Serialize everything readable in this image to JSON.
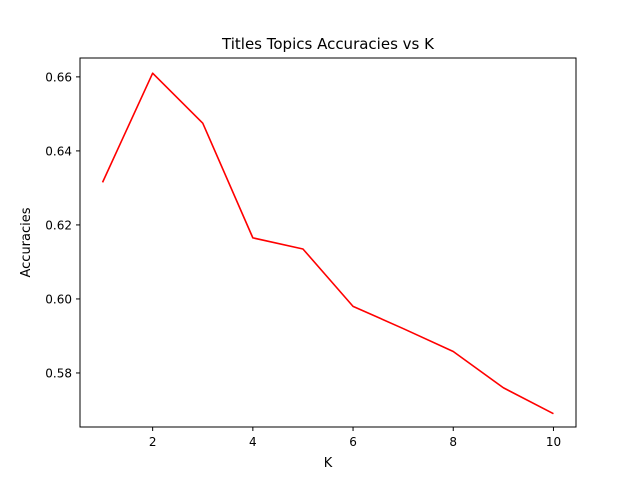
{
  "chart_data": {
    "type": "line",
    "title": "Titles Topics Accuracies vs K",
    "xlabel": "K",
    "ylabel": "Accuracies",
    "x": [
      1,
      2,
      3,
      4,
      5,
      6,
      7,
      8,
      9,
      10
    ],
    "series": [
      {
        "values": [
          0.6315,
          0.661,
          0.6475,
          0.6165,
          0.6135,
          0.598,
          0.592,
          0.5858,
          0.576,
          0.569
        ],
        "color": "#ff0000"
      }
    ],
    "xlim": [
      0.55,
      10.45
    ],
    "ylim": [
      0.5654,
      0.6651
    ],
    "xticks": [
      2,
      4,
      6,
      8,
      10
    ],
    "xtick_labels": [
      "2",
      "4",
      "6",
      "8",
      "10"
    ],
    "yticks": [
      0.58,
      0.6,
      0.62,
      0.64,
      0.66
    ],
    "ytick_labels": [
      "0.58",
      "0.60",
      "0.62",
      "0.64",
      "0.66"
    ],
    "grid": false,
    "legend": "none"
  }
}
